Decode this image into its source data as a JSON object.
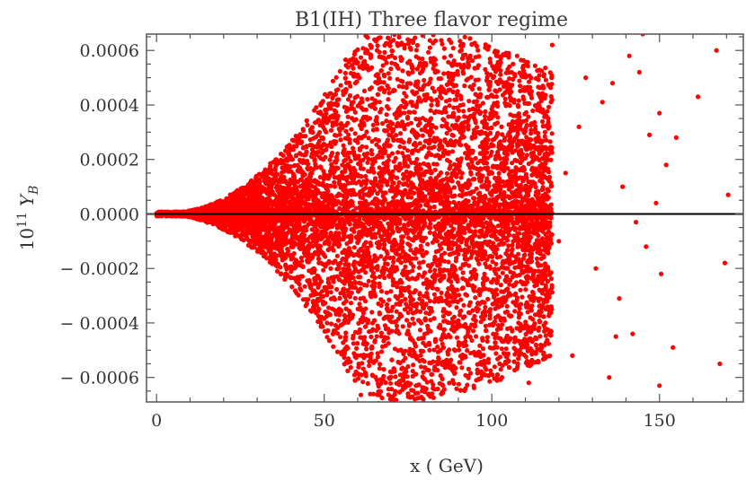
{
  "chart_data": {
    "type": "scatter",
    "title": "B1(IH) Three flavor regime",
    "xlabel": "x  ( GeV)",
    "ylabel": "10",
    "ylabel_sup": "11",
    "ylabel_var": "Y",
    "ylabel_sub": "B",
    "xlim": [
      -3,
      175
    ],
    "ylim": [
      -0.00069,
      0.00066
    ],
    "x_ticks": [
      {
        "value": 0,
        "label": "0"
      },
      {
        "value": 50,
        "label": "50"
      },
      {
        "value": 100,
        "label": "100"
      },
      {
        "value": 150,
        "label": "150"
      }
    ],
    "y_ticks": [
      {
        "value": -0.0006,
        "label": "− 0.0006"
      },
      {
        "value": -0.0004,
        "label": "− 0.0004"
      },
      {
        "value": -0.0002,
        "label": "− 0.0002"
      },
      {
        "value": 0.0,
        "label": "0.0000"
      },
      {
        "value": 0.0002,
        "label": "0.0002"
      },
      {
        "value": 0.0004,
        "label": "0.0004"
      },
      {
        "value": 0.0006,
        "label": "0.0006"
      }
    ],
    "reference_line_y": 0,
    "series": [
      {
        "color": "#ff0000",
        "points": [
          [
            161.5,
            0.00043
          ],
          [
            167,
            0.0006
          ],
          [
            170.5,
            7e-05
          ],
          [
            169.5,
            -0.00018
          ],
          [
            168,
            -0.00055
          ],
          [
            155,
            0.00028
          ],
          [
            152,
            0.00018
          ],
          [
            150,
            0.00037
          ],
          [
            150.5,
            -0.00022
          ],
          [
            150,
            -0.00063
          ],
          [
            147,
            0.00029
          ],
          [
            145,
            0.00066
          ],
          [
            144,
            0.00052
          ],
          [
            143,
            -3e-05
          ],
          [
            142,
            -0.00044
          ],
          [
            139,
            0.0001
          ],
          [
            138,
            -0.00031
          ],
          [
            136,
            0.00048
          ],
          [
            135,
            -0.0006
          ],
          [
            133,
            0.00041
          ],
          [
            131,
            -0.0002
          ],
          [
            128,
            0.0005
          ],
          [
            126,
            0.00032
          ],
          [
            124,
            -0.00052
          ],
          [
            122,
            0.00015
          ],
          [
            120,
            -0.0001
          ],
          [
            118,
            0.00062
          ],
          [
            116,
            -0.0004
          ],
          [
            113,
            0.00024
          ],
          [
            111,
            -0.00062
          ],
          [
            154,
            -0.00049
          ],
          [
            149,
            4e-05
          ],
          [
            146,
            -0.00012
          ],
          [
            141,
            0.00058
          ],
          [
            137,
            -0.00045
          ]
        ],
        "generated": {
          "count": 9000,
          "x_range": [
            0,
            118
          ],
          "peak_x": 62,
          "envelope_max": 0.0007
        }
      }
    ],
    "grid": false,
    "legend": "none"
  }
}
